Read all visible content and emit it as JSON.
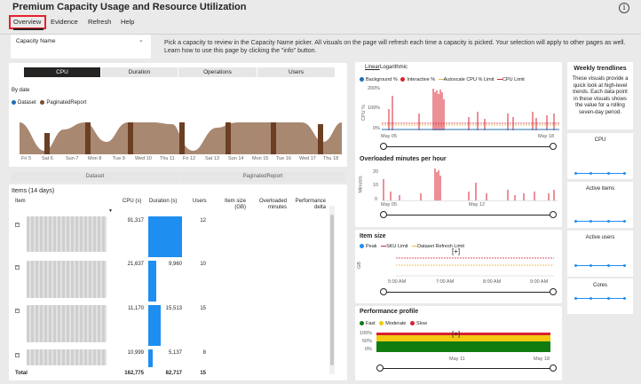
{
  "page": {
    "title": "Premium Capacity Usage and Resource Utilization",
    "tabs": [
      "Overview",
      "Evidence",
      "Refresh",
      "Help"
    ],
    "active_tab": "Overview"
  },
  "capacity_picker": {
    "label": "Capacity Name",
    "value": ""
  },
  "instructions": "Pick a capacity to review in the Capacity Name picker. All visuals on the page will refresh each time a capacity is picked. Your selection will apply to other pages as well. Learn how to use this page by clicking the \"info\" button.",
  "segments": [
    "CPU",
    "Duration",
    "Operations",
    "Users"
  ],
  "active_segment": "CPU",
  "by_date": {
    "label": "By date",
    "legend": [
      {
        "name": "Dataset",
        "color": "#1f6fb5"
      },
      {
        "name": "PaginatedReport",
        "color": "#7b4a2f"
      }
    ],
    "x_labels": [
      "Fri 5",
      "Sat 6",
      "Sun 7",
      "Mon 8",
      "Tue 9",
      "Wed 10",
      "Thu 11",
      "Fri 12",
      "Sat 13",
      "Sun 14",
      "Mon 15",
      "Tue 16",
      "Wed 17",
      "Thu 18"
    ],
    "colors": {
      "band": "#a98872",
      "dark": "#6b3f22"
    }
  },
  "type_buttons": [
    "Dataset",
    "PaginatedReport"
  ],
  "items": {
    "header": "Items (14 days)",
    "columns": [
      "Item",
      "CPU (s)",
      "Duration (s)",
      "Users",
      "Item size (GB)",
      "Overloaded minutes",
      "Performance delta"
    ],
    "rows": [
      {
        "cpu": "91,317",
        "duration": "41,330",
        "duration_fraction": 1.0,
        "users": "12"
      },
      {
        "cpu": "21,637",
        "duration": "9,960",
        "duration_fraction": 0.24,
        "users": "10"
      },
      {
        "cpu": "11,170",
        "duration": "15,513",
        "duration_fraction": 0.375,
        "users": "15"
      },
      {
        "cpu": "10,999",
        "duration": "5,137",
        "duration_fraction": 0.124,
        "users": "8"
      }
    ],
    "total": {
      "label": "Total",
      "cpu": "162,775",
      "duration": "82,717",
      "users": "15"
    }
  },
  "cpu_chart": {
    "toggles": [
      "Linear",
      "Logarithmic"
    ],
    "legend": [
      "Background %",
      "Interactive %",
      "Autoscale CPU % Limit",
      "CPU Limit"
    ],
    "y_label": "CPU %",
    "y_ticks": [
      "200%",
      "100%",
      "0%"
    ],
    "x_labels": [
      "May 05",
      "May 18"
    ],
    "colors": {
      "background": "#1f6fb5",
      "interactive": "#d92032",
      "autoscale": "#e8b447",
      "limit": "#d92032"
    }
  },
  "overloaded_chart": {
    "title": "Overloaded minutes per hour",
    "y_label": "Minutes",
    "y_ticks": [
      "20",
      "10",
      "0"
    ],
    "x_labels": [
      "May 05",
      "May 12"
    ]
  },
  "item_size_chart": {
    "title": "Item size",
    "legend": [
      "Peak",
      "SKU Limit",
      "Dataset Refresh Limit"
    ],
    "y_label": "GB",
    "x_labels": [
      "5:00 AM",
      "7:00 AM",
      "8:00 AM",
      "9:00 AM"
    ],
    "focus_glyph": "[+]"
  },
  "performance_chart": {
    "title": "Performance profile",
    "legend": [
      {
        "name": "Fast",
        "color": "#107c10"
      },
      {
        "name": "Moderate",
        "color": "#f2c811"
      },
      {
        "name": "Slow",
        "color": "#d92032"
      }
    ],
    "y_ticks": [
      "100%",
      "50%",
      "0%"
    ],
    "x_labels": [
      "May 11",
      "May 18"
    ],
    "focus_glyph": "[+]"
  },
  "weekly_trendlines": {
    "title": "Weekly trendlines",
    "description": "These visuals provide a quick look at high-level trends. Each data point in these visuals shows the value for a rolling seven-day period.",
    "cards": [
      "CPU",
      "Active items",
      "Active users",
      "Cores"
    ]
  }
}
